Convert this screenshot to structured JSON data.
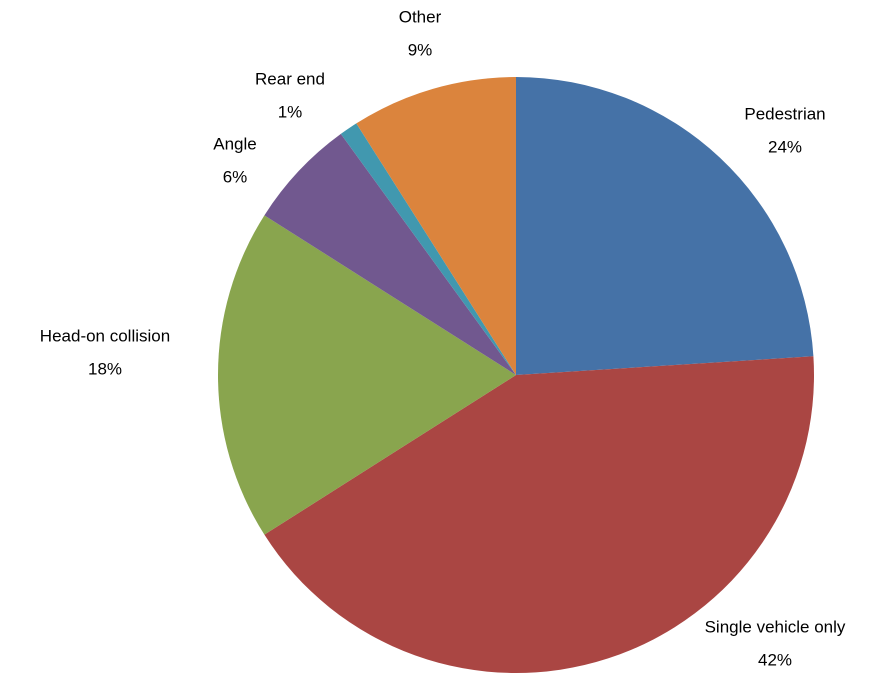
{
  "chart_data": {
    "type": "pie",
    "categories": [
      "Pedestrian",
      "Single vehicle only",
      "Head-on collision",
      "Angle",
      "Rear end",
      "Other"
    ],
    "values": [
      24,
      42,
      18,
      6,
      1,
      9
    ],
    "value_labels": [
      "24%",
      "42%",
      "18%",
      "6%",
      "1%",
      "9%"
    ],
    "colors": [
      "#4572a7",
      "#aa4643",
      "#89a54e",
      "#71588f",
      "#4198af",
      "#db843d"
    ]
  }
}
